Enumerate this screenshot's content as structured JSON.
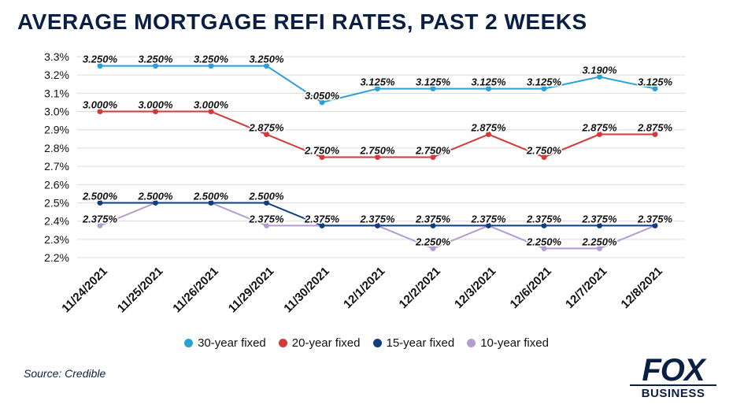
{
  "title": "AVERAGE MORTGAGE REFI RATES, PAST 2 WEEKS",
  "source": "Source: Credible",
  "logo": {
    "main": "FOX",
    "sub": "BUSINESS"
  },
  "chart_data": {
    "type": "line",
    "title": "AVERAGE MORTGAGE REFI RATES, PAST 2 WEEKS",
    "categories": [
      "11/24/2021",
      "11/25/2021",
      "11/26/2021",
      "11/29/2021",
      "11/30/2021",
      "12/1/2021",
      "12/2/2021",
      "12/3/2021",
      "12/6/2021",
      "12/7/2021",
      "12/8/2021"
    ],
    "ylim": [
      2.2,
      3.3
    ],
    "yticks": [
      "3.3%",
      "3.2%",
      "3.1%",
      "3.0%",
      "2.9%",
      "2.8%",
      "2.7%",
      "2.6%",
      "2.5%",
      "2.4%",
      "2.3%",
      "2.2%"
    ],
    "ytick_values": [
      3.3,
      3.2,
      3.1,
      3.0,
      2.9,
      2.8,
      2.7,
      2.6,
      2.5,
      2.4,
      2.3,
      2.2
    ],
    "grid": true,
    "legend_position": "bottom",
    "series": [
      {
        "name": "30-year fixed",
        "color": "#2b9fd6",
        "values": [
          3.25,
          3.25,
          3.25,
          3.25,
          3.05,
          3.125,
          3.125,
          3.125,
          3.125,
          3.19,
          3.125
        ],
        "labels": [
          "3.250%",
          "3.250%",
          "3.250%",
          "3.250%",
          "3.050%",
          "3.125%",
          "3.125%",
          "3.125%",
          "3.125%",
          "3.190%",
          "3.125%"
        ]
      },
      {
        "name": "20-year fixed",
        "color": "#d23a3a",
        "values": [
          3.0,
          3.0,
          3.0,
          2.875,
          2.75,
          2.75,
          2.75,
          2.875,
          2.75,
          2.875,
          2.875
        ],
        "labels": [
          "3.000%",
          "3.000%",
          "3.000%",
          "2.875%",
          "2.750%",
          "2.750%",
          "2.750%",
          "2.875%",
          "2.750%",
          "2.875%",
          "2.875%"
        ]
      },
      {
        "name": "15-year fixed",
        "color": "#0d3f80",
        "values": [
          2.5,
          2.5,
          2.5,
          2.5,
          2.375,
          2.375,
          2.375,
          2.375,
          2.375,
          2.375,
          2.375
        ],
        "labels": [
          "2.500%",
          "2.500%",
          "2.500%",
          "2.500%",
          "2.375%",
          "2.375%",
          "2.375%",
          "2.375%",
          "2.375%",
          "2.375%",
          "2.375%"
        ]
      },
      {
        "name": "10-year fixed",
        "color": "#b49bd2",
        "values": [
          2.375,
          2.5,
          2.5,
          2.375,
          2.375,
          2.375,
          2.25,
          2.375,
          2.25,
          2.25,
          2.375
        ],
        "labels": [
          "2.375%",
          "",
          "",
          "2.375%",
          "",
          "",
          "2.250%",
          "",
          "2.250%",
          "2.250%",
          ""
        ]
      }
    ]
  }
}
